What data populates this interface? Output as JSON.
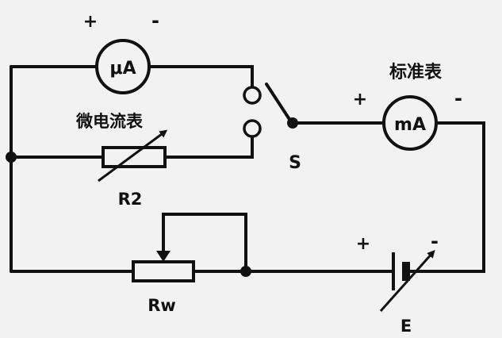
{
  "labels": {
    "micro_ammeter_symbol": "μA",
    "micro_ammeter_name": "微电流表",
    "micro_plus": "+",
    "micro_minus": "-",
    "standard_meter_name": "标准表",
    "standard_meter_symbol": "mA",
    "standard_plus": "+",
    "standard_minus": "-",
    "switch": "S",
    "resistor_r2": "R2",
    "resistor_rw": "Rw",
    "source": "E",
    "source_plus": "+",
    "source_minus": "-"
  },
  "colors": {
    "ink": "#111111",
    "background": "#f2f2f2"
  }
}
